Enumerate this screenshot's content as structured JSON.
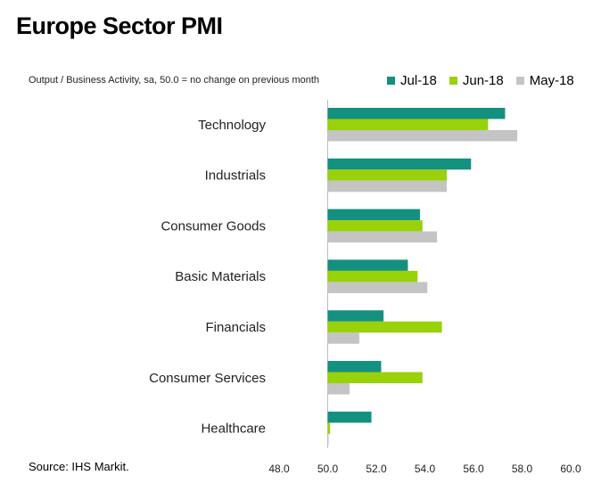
{
  "title": "Europe Sector PMI",
  "subtitle": "Output / Business Activity, sa, 50.0 = no change on previous month",
  "source": "Source: IHS Markit.",
  "colors": {
    "Jul-18": "#14907f",
    "Jun-18": "#99d10a",
    "May-18": "#c4c4c4"
  },
  "chart_data": {
    "type": "bar",
    "orientation": "horizontal",
    "title": "Europe Sector PMI",
    "categories": [
      "Technology",
      "Industrials",
      "Consumer Goods",
      "Basic Materials",
      "Financials",
      "Consumer Services",
      "Healthcare"
    ],
    "series": [
      {
        "name": "Jul-18",
        "values": [
          57.3,
          55.9,
          53.8,
          53.3,
          52.3,
          52.2,
          51.8
        ]
      },
      {
        "name": "Jun-18",
        "values": [
          56.6,
          54.9,
          53.9,
          53.7,
          54.7,
          53.9,
          50.1
        ]
      },
      {
        "name": "May-18",
        "values": [
          57.8,
          54.9,
          54.5,
          54.1,
          51.3,
          50.9,
          50.0
        ]
      }
    ],
    "baseline": 50.0,
    "xlim": [
      48.0,
      60.0
    ],
    "xticks": [
      "48.0",
      "50.0",
      "52.0",
      "54.0",
      "56.0",
      "58.0",
      "60.0"
    ],
    "legend": "top-right",
    "grid": false
  }
}
